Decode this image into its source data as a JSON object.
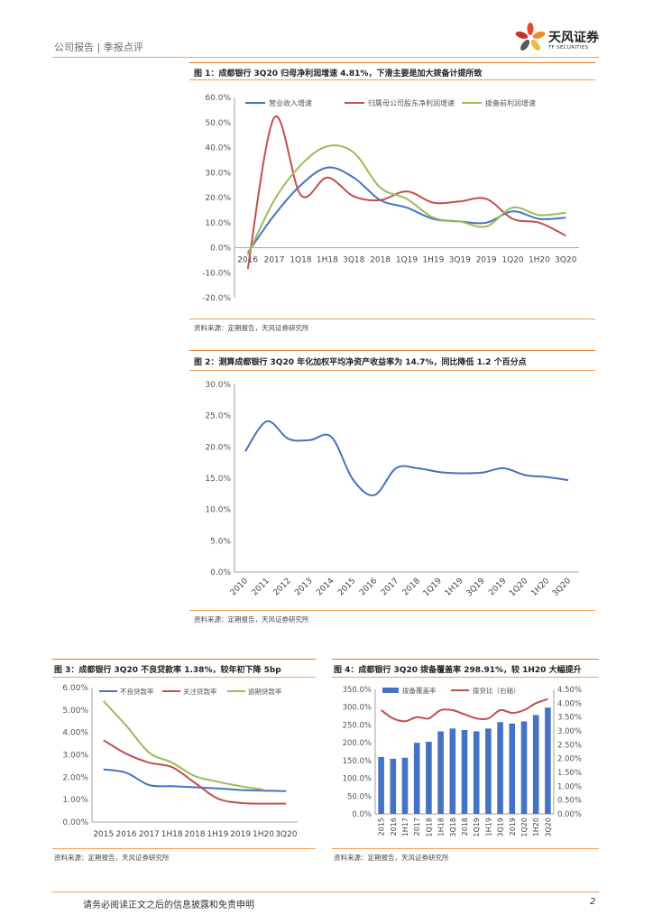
{
  "header": {
    "left_text": "公司报告 | 季报点评",
    "brand": "天风证券",
    "brand_en": "TF SECURITIES"
  },
  "colors": {
    "blue": "#4472c4",
    "red": "#c0504d",
    "green": "#9bbb59",
    "accent": "#f2a05a"
  },
  "figure1": {
    "title": "图 1：成都银行 3Q20 归母净利润增速 4.81%，下滑主要是加大拨备计提所致",
    "source": "资料来源：定期报告，天风证券研究所",
    "chart_data": {
      "type": "line",
      "categories": [
        "2016",
        "2017",
        "1Q18",
        "1H18",
        "3Q18",
        "2018",
        "1Q19",
        "1H19",
        "3Q19",
        "2019",
        "1Q20",
        "1H20",
        "3Q20"
      ],
      "series": [
        {
          "name": "营业收入增速",
          "color": "#4472c4",
          "values": [
            -2.0,
            13.0,
            25.0,
            32.0,
            28.0,
            19.0,
            16.0,
            11.5,
            10.5,
            10.0,
            14.5,
            11.5,
            12.0
          ]
        },
        {
          "name": "归属母公司股东净利润增速",
          "color": "#c0504d",
          "values": [
            -8.5,
            52.0,
            21.0,
            28.0,
            20.5,
            19.0,
            22.5,
            18.0,
            18.5,
            19.5,
            11.5,
            10.0,
            4.81
          ]
        },
        {
          "name": "拨备前利润增速",
          "color": "#9bbb59",
          "values": [
            -3.0,
            19.0,
            33.0,
            40.5,
            38.0,
            24.0,
            19.5,
            12.0,
            10.5,
            8.5,
            16.0,
            13.0,
            14.0
          ]
        }
      ],
      "yticks": [
        "60.0%",
        "50.0%",
        "40.0%",
        "30.0%",
        "20.0%",
        "10.0%",
        "0.0%",
        "-10.0%",
        "-20.0%"
      ],
      "ylim": [
        -20,
        60
      ]
    }
  },
  "figure2": {
    "title": "图 2：测算成都银行 3Q20 年化加权平均净资产收益率为 14.7%，同比降低 1.2 个百分点",
    "source": "资料来源：定期报告，天风证券研究所",
    "chart_data": {
      "type": "line",
      "categories": [
        "2010",
        "2011",
        "2012",
        "2013",
        "2014",
        "2015",
        "2016",
        "2017",
        "2018",
        "1Q19",
        "1H19",
        "3Q19",
        "2019",
        "1Q20",
        "1H20",
        "3Q20"
      ],
      "series": [
        {
          "name": "年化加权平均ROE",
          "color": "#4472c4",
          "values": [
            19.3,
            24.1,
            21.3,
            21.1,
            21.6,
            14.8,
            12.3,
            16.6,
            16.6,
            16.0,
            15.8,
            15.9,
            16.6,
            15.5,
            15.2,
            14.7
          ]
        }
      ],
      "yticks": [
        "30.0%",
        "25.0%",
        "20.0%",
        "15.0%",
        "10.0%",
        "5.0%",
        "0.0%"
      ],
      "ylim": [
        0,
        30
      ]
    }
  },
  "figure3": {
    "title": "图 3：成都银行 3Q20 不良贷款率 1.38%，较年初下降 5bp",
    "source": "资料来源：定期报告，天风证券研究所",
    "chart_data": {
      "type": "line",
      "categories": [
        "2015",
        "2016",
        "2017",
        "1H18",
        "2018",
        "1H19",
        "2019",
        "1H20",
        "3Q20"
      ],
      "series": [
        {
          "name": "不良贷款率",
          "color": "#4472c4",
          "values": [
            2.35,
            2.2,
            1.65,
            1.6,
            1.55,
            1.5,
            1.43,
            1.4,
            1.38
          ]
        },
        {
          "name": "关注贷款率",
          "color": "#c0504d",
          "values": [
            3.65,
            3.05,
            2.65,
            2.45,
            1.75,
            1.05,
            0.85,
            0.82,
            0.82
          ]
        },
        {
          "name": "逾期贷款率",
          "color": "#9bbb59",
          "values": [
            5.4,
            4.3,
            3.1,
            2.65,
            2.05,
            1.8,
            1.6,
            1.45,
            null
          ]
        }
      ],
      "yticks": [
        "6.00%",
        "5.00%",
        "4.00%",
        "3.00%",
        "2.00%",
        "1.00%",
        "0.00%"
      ],
      "ylim": [
        0,
        6
      ]
    }
  },
  "figure4": {
    "title": "图 4：成都银行 3Q20 拨备覆盖率 298.91%，较 1H20 大幅提升",
    "source": "资料来源：定期报告，天风证券研究所",
    "chart_data": {
      "type": "bar",
      "categories": [
        "2015",
        "2016",
        "1H17",
        "2017",
        "1Q18",
        "1H18",
        "3Q18",
        "2018",
        "1Q19",
        "1H19",
        "3Q19",
        "2019",
        "1Q20",
        "1H20",
        "3Q20"
      ],
      "series": [
        {
          "name": "拨备覆盖率",
          "color": "#4472c4",
          "axis": "left",
          "values": [
            160,
            155,
            158,
            200,
            203,
            232,
            240,
            236,
            232,
            240,
            258,
            254,
            260,
            278,
            298.91
          ]
        },
        {
          "name": "拨贷比（右轴）",
          "color": "#c0504d",
          "axis": "right",
          "values": [
            3.75,
            3.45,
            3.35,
            3.5,
            3.45,
            3.75,
            3.75,
            3.6,
            3.45,
            3.45,
            3.75,
            3.65,
            3.75,
            4.0,
            4.15
          ]
        }
      ],
      "yticks_left": [
        "350.0%",
        "300.0%",
        "250.0%",
        "200.0%",
        "150.0%",
        "100.0%",
        "50.0%",
        "0.0%"
      ],
      "yticks_right": [
        "4.50%",
        "4.00%",
        "3.50%",
        "3.00%",
        "2.50%",
        "2.00%",
        "1.50%",
        "1.00%",
        "0.50%",
        "0.00%"
      ],
      "ylim_left": [
        0,
        350
      ],
      "ylim_right": [
        0,
        4.5
      ]
    }
  },
  "footer": {
    "disclaimer": "请务必阅读正文之后的信息披露和免责申明",
    "page": "2"
  }
}
